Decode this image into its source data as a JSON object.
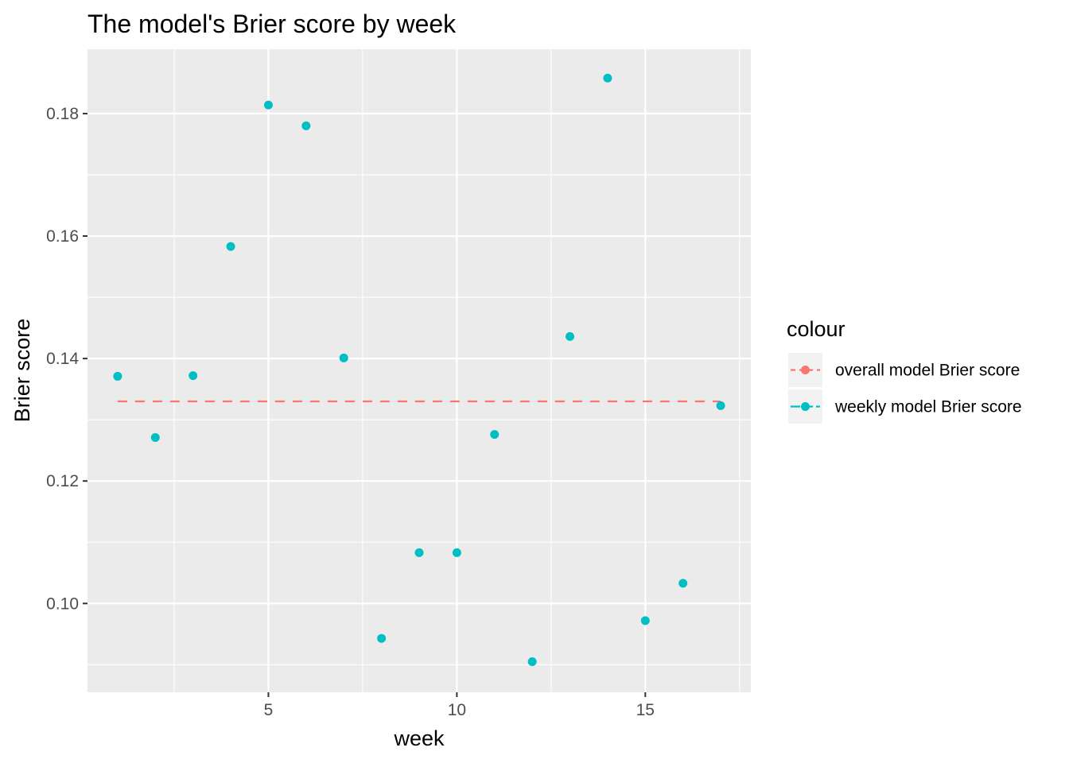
{
  "chart_data": {
    "type": "scatter",
    "title": "The model's Brier score by week",
    "xlabel": "week",
    "ylabel": "Brier score",
    "xlim": [
      0.2,
      17.8
    ],
    "ylim": [
      0.0855,
      0.1905
    ],
    "x_major_ticks": [
      5,
      10,
      15
    ],
    "x_minor_ticks": [
      2.5,
      7.5,
      12.5,
      17.5
    ],
    "y_major_ticks": [
      0.1,
      0.12,
      0.14,
      0.16,
      0.18
    ],
    "y_minor_ticks": [
      0.09,
      0.11,
      0.13,
      0.15,
      0.17
    ],
    "x_tick_labels": [
      "5",
      "10",
      "15"
    ],
    "y_tick_labels": [
      "0.10",
      "0.12",
      "0.14",
      "0.16",
      "0.18"
    ],
    "grid": true,
    "legend": {
      "title": "colour",
      "position": "right",
      "entries": [
        {
          "label": "overall model Brier score",
          "color": "#F8766D",
          "style": "dashed-line-point"
        },
        {
          "label": "weekly model Brier score",
          "color": "#00BFC4",
          "style": "point"
        }
      ]
    },
    "series": [
      {
        "name": "overall model Brier score",
        "kind": "line",
        "dashed": true,
        "color": "#F8766D",
        "x": [
          1,
          17
        ],
        "y": [
          0.133,
          0.133
        ]
      },
      {
        "name": "weekly model Brier score",
        "kind": "points",
        "color": "#00BFC4",
        "x": [
          1,
          2,
          3,
          4,
          5,
          6,
          7,
          8,
          9,
          10,
          11,
          12,
          13,
          14,
          15,
          16,
          17
        ],
        "y": [
          0.1371,
          0.1271,
          0.1372,
          0.1583,
          0.1814,
          0.178,
          0.1401,
          0.0943,
          0.1083,
          0.1083,
          0.1276,
          0.0905,
          0.1436,
          0.1858,
          0.0972,
          0.1033,
          0.1323
        ]
      }
    ],
    "colors": {
      "panel_background": "#EBEBEB",
      "grid_line": "#FFFFFF",
      "tick_text": "#4D4D4D",
      "legend_key_background": "#F2F2F2"
    }
  }
}
